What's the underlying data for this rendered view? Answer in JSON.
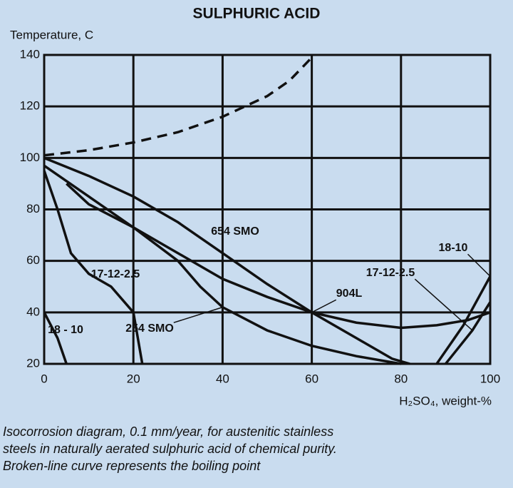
{
  "chart_data": {
    "type": "line",
    "title": "SULPHURIC ACID",
    "y_label": "Temperature, C",
    "x_label": "H₂SO₄, weight-%",
    "caption": [
      "Isocorrosion diagram, 0.1 mm/year, for austenitic stainless",
      "steels in naturally aerated sulphuric acid of chemical purity.",
      "Broken-line curve represents the boiling point"
    ],
    "xlim": [
      0,
      100
    ],
    "xticks": [
      0,
      20,
      40,
      60,
      80,
      100
    ],
    "ylim": [
      20,
      140
    ],
    "yticks": [
      20,
      40,
      60,
      80,
      100,
      120,
      140
    ],
    "grid": true,
    "series": [
      {
        "color": "#111111",
        "dashed": true,
        "x": [
          0,
          10,
          20,
          30,
          40,
          50,
          55,
          60
        ],
        "values": [
          101,
          103,
          106,
          110,
          116,
          124,
          130,
          139
        ]
      },
      {
        "name": "654 SMO",
        "color": "#111111",
        "x": [
          0,
          10,
          20,
          30,
          40,
          50,
          60,
          70,
          78,
          82
        ],
        "values": [
          100,
          93,
          85,
          75,
          63,
          51,
          40,
          30,
          22,
          20
        ]
      },
      {
        "name": "904L",
        "color": "#111111",
        "x": [
          0,
          10,
          20,
          30,
          40,
          50,
          60,
          70,
          80,
          88,
          95,
          100
        ],
        "values": [
          97,
          85,
          73,
          63,
          53,
          46,
          40,
          36,
          34,
          35,
          37,
          40
        ]
      },
      {
        "name": "254 SMO",
        "color": "#111111",
        "x": [
          5,
          10,
          20,
          30,
          35,
          40,
          50,
          60,
          70,
          80
        ],
        "values": [
          90,
          82,
          73,
          60,
          50,
          42,
          33,
          27,
          23,
          20
        ]
      },
      {
        "name": "17-12-2.5",
        "color": "#111111",
        "x": [
          0,
          3,
          6,
          10,
          15,
          20,
          21,
          22
        ],
        "values": [
          95,
          80,
          63,
          55,
          50,
          40,
          30,
          20
        ]
      },
      {
        "name": "18 - 10",
        "color": "#111111",
        "x": [
          0,
          3,
          5
        ],
        "values": [
          40,
          30,
          20
        ]
      },
      {
        "name": "18-10",
        "color": "#111111",
        "x": [
          88,
          94,
          100
        ],
        "values": [
          20,
          35,
          54
        ]
      },
      {
        "name": "17-12-2.5",
        "color": "#111111",
        "x": [
          90,
          96,
          100
        ],
        "values": [
          20,
          33,
          44
        ]
      }
    ]
  }
}
